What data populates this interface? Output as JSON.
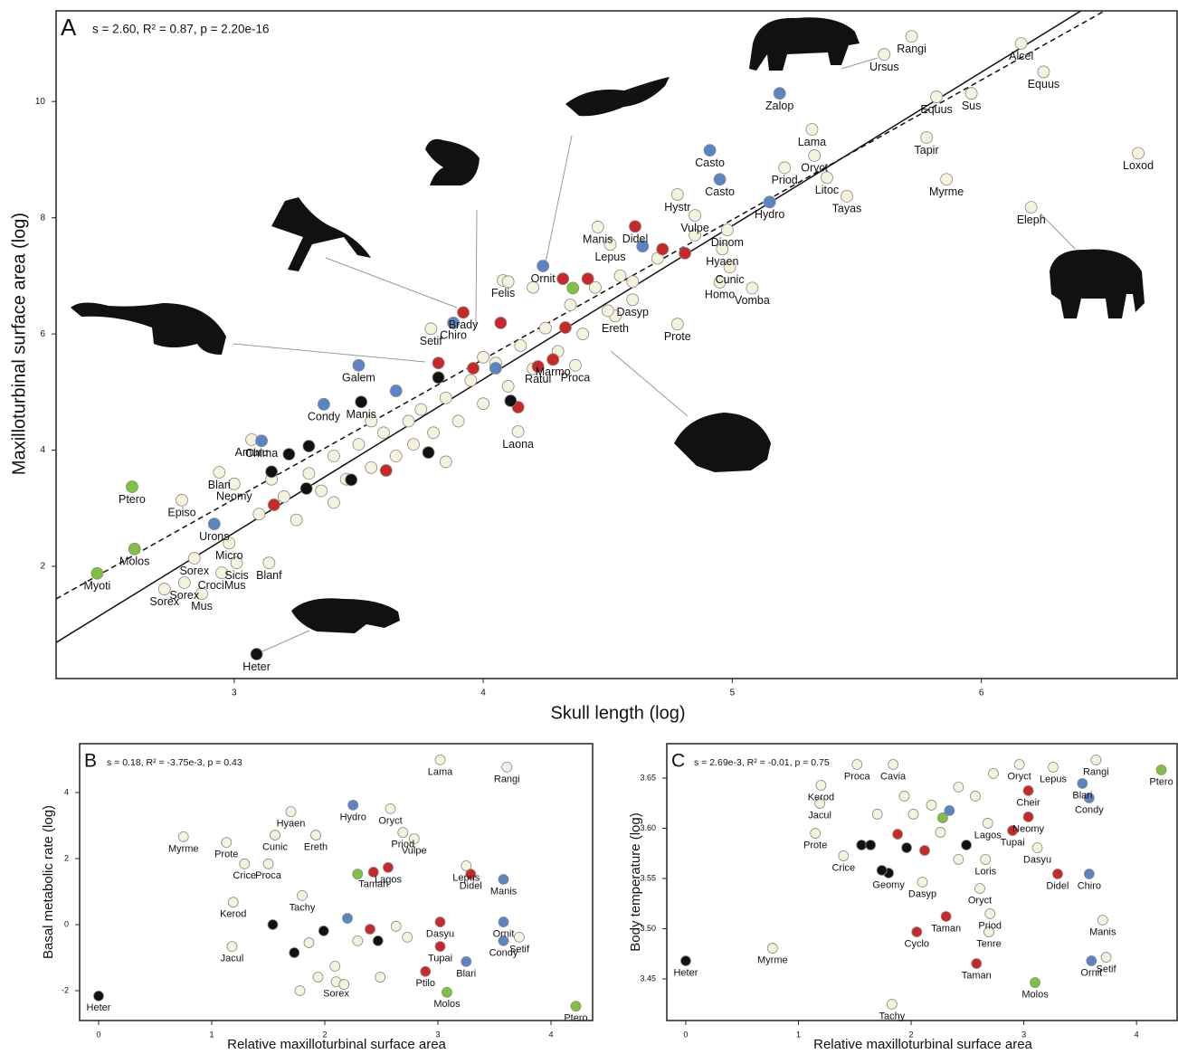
{
  "chart_data": [
    {
      "type": "scatter",
      "panel_label": "A",
      "annotation": "s = 2.60, R² = 0.87, p = 2.20e-16",
      "xlabel": "Skull length (log)",
      "ylabel": "Maxilloturbinal surface area (log)",
      "xlim": [
        2.285,
        6.786
      ],
      "ylim": [
        0.07,
        11.56
      ],
      "xticks": [
        3,
        4,
        5,
        6
      ],
      "yticks": [
        2,
        4,
        6,
        8,
        10
      ],
      "lines": [
        {
          "style": "solid",
          "x": [
            2.285,
            6.4
          ],
          "y": [
            0.69,
            11.56
          ]
        },
        {
          "style": "dashed",
          "x": [
            2.285,
            6.495
          ],
          "y": [
            1.44,
            11.56
          ]
        }
      ],
      "series": [
        {
          "color": "#f5f2de",
          "x": [
            5.72,
            5.61,
            6.16,
            6.25,
            5.82,
            5.96,
            5.32,
            5.33,
            5.21,
            5.38,
            5.46,
            5.78,
            5.86,
            6.63,
            6.2,
            4.78,
            4.85,
            4.98,
            4.96,
            4.99,
            4.95,
            5.08,
            4.46,
            4.51,
            4.78,
            4.08,
            3.79,
            2.84,
            2.8,
            2.72,
            2.95,
            2.87,
            3.01,
            3.14,
            2.79,
            3.0,
            2.94,
            2.98,
            3.07,
            4.14,
            4.37,
            4.53,
            4.6,
            3.2,
            3.3,
            3.35,
            3.4,
            3.45,
            3.5,
            3.55,
            3.6,
            3.65,
            3.7,
            3.72,
            3.75,
            3.8,
            3.85,
            3.9,
            3.95,
            4.0,
            4.05,
            4.1,
            4.15,
            4.2,
            4.25,
            4.3,
            4.35,
            4.4,
            4.45,
            4.5,
            3.1,
            3.15,
            3.25,
            3.4,
            3.55,
            3.85,
            4.0,
            4.55,
            4.7,
            4.85,
            4.6,
            4.2,
            4.1
          ],
          "y": [
            11.12,
            10.81,
            11.0,
            10.51,
            10.08,
            10.14,
            9.52,
            9.07,
            8.86,
            8.69,
            8.37,
            9.38,
            8.66,
            9.11,
            8.18,
            8.4,
            8.04,
            7.79,
            7.46,
            7.15,
            6.89,
            6.79,
            7.84,
            7.54,
            6.17,
            6.92,
            6.09,
            2.14,
            1.72,
            1.61,
            1.89,
            1.53,
            2.06,
            2.06,
            3.14,
            3.42,
            3.62,
            2.4,
            4.18,
            4.32,
            5.46,
            6.31,
            6.59,
            3.2,
            3.6,
            3.3,
            3.9,
            3.5,
            4.1,
            3.7,
            4.3,
            3.9,
            4.5,
            4.1,
            4.7,
            4.3,
            4.9,
            4.5,
            5.2,
            4.8,
            5.5,
            5.1,
            5.8,
            5.4,
            6.1,
            5.7,
            6.5,
            6.0,
            6.8,
            6.4,
            2.9,
            3.5,
            2.8,
            3.1,
            4.5,
            3.8,
            5.6,
            7.0,
            7.3,
            7.7,
            6.9,
            6.8,
            6.9
          ],
          "labels": [
            "Rangi",
            "Ursus",
            "Alcel",
            "Equus",
            "Equus",
            "Sus",
            "Lama",
            "Oryct",
            "Priod",
            "Litoc",
            "Tayas",
            "Tapir",
            "Myrme",
            "Loxod",
            "Eleph",
            "Hystr",
            "Vulpe",
            "Dinom",
            "Hyaen",
            "Cunic",
            "Homo",
            "Vomba",
            "Manis",
            "Lepus",
            "Prote",
            "Felis",
            "Setif",
            "Sorex",
            "Sorex",
            "Sorex",
            "CrociMus",
            "Mus",
            "Sicis",
            "Blanf",
            "Episo",
            "Neomy",
            "Blari",
            "Micro",
            "Amuru",
            "Laona",
            "Proca",
            "Ereth",
            "Dasyp",
            null,
            null,
            null,
            null,
            null,
            null,
            null,
            null,
            null,
            null,
            null,
            null,
            null,
            null,
            null,
            null,
            null,
            null,
            null,
            null,
            null,
            null,
            null,
            null,
            null,
            null,
            null,
            null,
            null,
            null,
            null,
            null,
            null,
            null,
            null,
            null,
            null,
            null,
            null,
            null
          ]
        },
        {
          "color": "#5b84c8",
          "x": [
            5.19,
            4.91,
            4.95,
            5.15,
            4.24,
            3.88,
            3.5,
            3.36,
            3.11,
            2.92,
            3.65,
            4.05,
            4.64
          ],
          "y": [
            10.14,
            9.16,
            8.66,
            8.27,
            7.17,
            6.19,
            5.46,
            4.79,
            4.16,
            2.73,
            5.02,
            5.41,
            7.51
          ],
          "labels": [
            "Zalop",
            "Casto",
            "Casto",
            "Hydro",
            "Ornit",
            "Chiro",
            "Galem",
            "Condy",
            "Chima",
            "Urons",
            null,
            null,
            null
          ]
        },
        {
          "color": "#c8282a",
          "x": [
            4.61,
            4.28,
            4.22,
            3.92,
            4.72,
            4.42,
            4.32,
            4.07,
            3.82,
            3.96,
            4.14,
            3.61,
            3.16,
            4.33,
            4.81
          ],
          "y": [
            7.85,
            5.56,
            5.44,
            6.37,
            7.46,
            6.95,
            6.95,
            6.19,
            5.5,
            5.41,
            4.74,
            3.65,
            3.06,
            6.11,
            7.39
          ],
          "labels": [
            "Didel",
            "Marmo",
            "Ratul",
            "Brady",
            null,
            null,
            null,
            null,
            null,
            null,
            null,
            null,
            null,
            null,
            null
          ]
        },
        {
          "color": "#7fc241",
          "x": [
            2.59,
            2.6,
            2.45,
            4.36
          ],
          "y": [
            3.37,
            2.3,
            1.88,
            6.79
          ],
          "labels": [
            "Ptero",
            "Molos",
            "Myoti",
            null
          ]
        },
        {
          "color": "#111111",
          "x": [
            3.09,
            3.51,
            3.22,
            3.3,
            3.15,
            3.82,
            3.78,
            4.11,
            3.47,
            3.29
          ],
          "y": [
            0.49,
            4.83,
            3.93,
            4.07,
            3.63,
            5.25,
            3.96,
            4.85,
            3.49,
            3.34
          ],
          "labels": [
            "Heter",
            "Manis",
            null,
            null,
            null,
            null,
            null,
            null,
            null,
            null
          ]
        }
      ]
    },
    {
      "type": "scatter",
      "panel_label": "B",
      "annotation": "s = 0.18, R² = -3.75e-3, p = 0.43",
      "xlabel": "Relative maxilloturbinal surface area",
      "ylabel": "Basal metabolic rate (log)",
      "xlim": [
        -0.168,
        4.368
      ],
      "ylim": [
        -2.904,
        5.479
      ],
      "xticks": [
        0,
        1,
        2,
        3,
        4
      ],
      "yticks": [
        -2,
        0,
        2,
        4
      ],
      "series": [
        {
          "color": "#f5f2de",
          "x": [
            3.02,
            3.61,
            0.75,
            1.13,
            1.7,
            1.56,
            1.92,
            2.58,
            2.69,
            2.79,
            1.29,
            1.5,
            3.25,
            1.19,
            1.18,
            3.72,
            1.8,
            2.1,
            1.86,
            2.09,
            2.29,
            2.63,
            1.94,
            1.78,
            2.73,
            2.49,
            2.17
          ],
          "y": [
            4.99,
            4.77,
            2.66,
            2.49,
            3.42,
            2.71,
            2.71,
            3.51,
            2.79,
            2.6,
            1.84,
            1.84,
            1.78,
            0.68,
            -0.66,
            -0.38,
            0.88,
            -1.73,
            -0.55,
            -1.26,
            -0.49,
            -0.05,
            -1.59,
            -2.0,
            -0.38,
            -1.59,
            -1.81
          ],
          "labels": [
            "Lama",
            "Rangi",
            "Myrme",
            "Prote",
            "Hyaen",
            "Cunic",
            "Ereth",
            "Oryct",
            "Priod",
            "Vulpe",
            "Crice",
            "Proca",
            "Lepus",
            "Kerod",
            "Jacul",
            "Setif",
            "Tachy",
            "Sorex",
            null,
            null,
            null,
            null,
            null,
            null,
            null,
            null,
            null
          ]
        },
        {
          "color": "#5b84c8",
          "x": [
            2.25,
            3.58,
            3.58,
            3.58,
            3.25,
            2.2
          ],
          "y": [
            3.62,
            1.37,
            0.08,
            -0.49,
            -1.12,
            0.19
          ],
          "labels": [
            "Hydro",
            "Manis",
            "Ornit",
            "Condy",
            "Blari",
            null
          ]
        },
        {
          "color": "#c8282a",
          "x": [
            2.56,
            2.43,
            3.29,
            2.89,
            3.02,
            3.02,
            2.4
          ],
          "y": [
            1.73,
            1.59,
            1.53,
            -1.42,
            -0.66,
            0.08,
            -0.14
          ],
          "labels": [
            "Lagos",
            "Taman",
            "Didel",
            "Ptilo",
            "Tupai",
            "Dasyu",
            null
          ]
        },
        {
          "color": "#7fc241",
          "x": [
            4.22,
            3.08,
            2.29
          ],
          "y": [
            -2.47,
            -2.05,
            1.53
          ],
          "labels": [
            "Ptero",
            "Molos",
            null
          ]
        },
        {
          "color": "#111111",
          "x": [
            0.0,
            1.54,
            1.99,
            1.73,
            2.47
          ],
          "y": [
            -2.16,
            0.0,
            -0.19,
            -0.85,
            -0.49
          ],
          "labels": [
            "Heter",
            null,
            null,
            null,
            null
          ]
        }
      ]
    },
    {
      "type": "scatter",
      "panel_label": "C",
      "annotation": "s = 2.69e-3, R² = -0.01, p = 0.75",
      "xlabel": "Relative maxilloturbinal surface area",
      "ylabel": "Body temperature (log)",
      "xlim": [
        -0.168,
        4.36
      ],
      "ylim": [
        3.4086,
        3.6842
      ],
      "xticks": [
        0,
        1,
        2,
        3,
        4
      ],
      "yticks": [
        3.45,
        {
          "value": 3.5,
          "label": "3.50"
        },
        3.55,
        {
          "value": 3.6,
          "label": "3.60"
        },
        3.65
      ],
      "series": [
        {
          "color": "#f5f2de",
          "x": [
            1.52,
            1.84,
            1.2,
            1.19,
            1.15,
            1.4,
            0.77,
            1.83,
            2.7,
            2.69,
            2.61,
            3.7,
            3.73,
            3.12,
            3.26,
            3.64,
            2.96,
            2.68,
            2.66,
            1.94,
            2.18,
            2.42,
            2.02,
            2.26,
            1.7,
            2.1,
            2.73,
            2.57,
            2.42
          ],
          "y": [
            3.6635,
            3.6635,
            3.6428,
            3.6248,
            3.595,
            3.5725,
            3.4806,
            3.4248,
            3.5149,
            3.4968,
            3.5401,
            3.5086,
            3.4716,
            3.5806,
            3.6608,
            3.668,
            3.6635,
            3.605,
            3.5689,
            3.632,
            3.623,
            3.641,
            3.614,
            3.596,
            3.614,
            3.5464,
            3.6545,
            3.632,
            3.569
          ],
          "labels": [
            "Proca",
            "Cavia",
            "Kerod",
            "Jacul",
            "Prote",
            "Crice",
            "Myrme",
            "Tachy",
            "Priod",
            "Tenre",
            "Oryct",
            "Manis",
            "Setif",
            "Dasyu",
            "Lepus",
            "Rangi",
            "Oryct",
            "Lagos",
            "Loris",
            null,
            null,
            null,
            null,
            null,
            null,
            "Dasyp",
            null,
            null,
            null
          ]
        },
        {
          "color": "#5b84c8",
          "x": [
            3.6,
            3.58,
            3.52,
            3.58,
            2.34
          ],
          "y": [
            3.468,
            3.5545,
            3.6446,
            3.6302,
            3.6176
          ],
          "labels": [
            "Ornit",
            "Chiro",
            "Blari",
            "Condy",
            null
          ]
        },
        {
          "color": "#c8282a",
          "x": [
            2.05,
            2.31,
            2.58,
            3.3,
            2.9,
            3.04,
            3.04,
            2.12,
            1.88
          ],
          "y": [
            3.4968,
            3.5122,
            3.4653,
            3.5545,
            3.5977,
            3.6113,
            3.6374,
            3.5779,
            3.5941
          ],
          "labels": [
            "Cyclo",
            "Taman",
            "Taman",
            "Didel",
            "Tupai",
            "Neomy",
            "Cheir",
            null,
            null
          ]
        },
        {
          "color": "#7fc241",
          "x": [
            3.1,
            4.22,
            2.28
          ],
          "y": [
            3.4464,
            3.6581,
            3.6104
          ],
          "labels": [
            "Molos",
            "Ptero",
            null
          ]
        },
        {
          "color": "#111111",
          "x": [
            0.0,
            1.8,
            1.56,
            1.64,
            1.96,
            2.49,
            1.74
          ],
          "y": [
            3.468,
            3.5554,
            3.5833,
            3.5833,
            3.5806,
            3.5833,
            3.5581
          ],
          "labels": [
            "Heter",
            "Geomy",
            null,
            null,
            null,
            null,
            null
          ]
        }
      ]
    }
  ]
}
